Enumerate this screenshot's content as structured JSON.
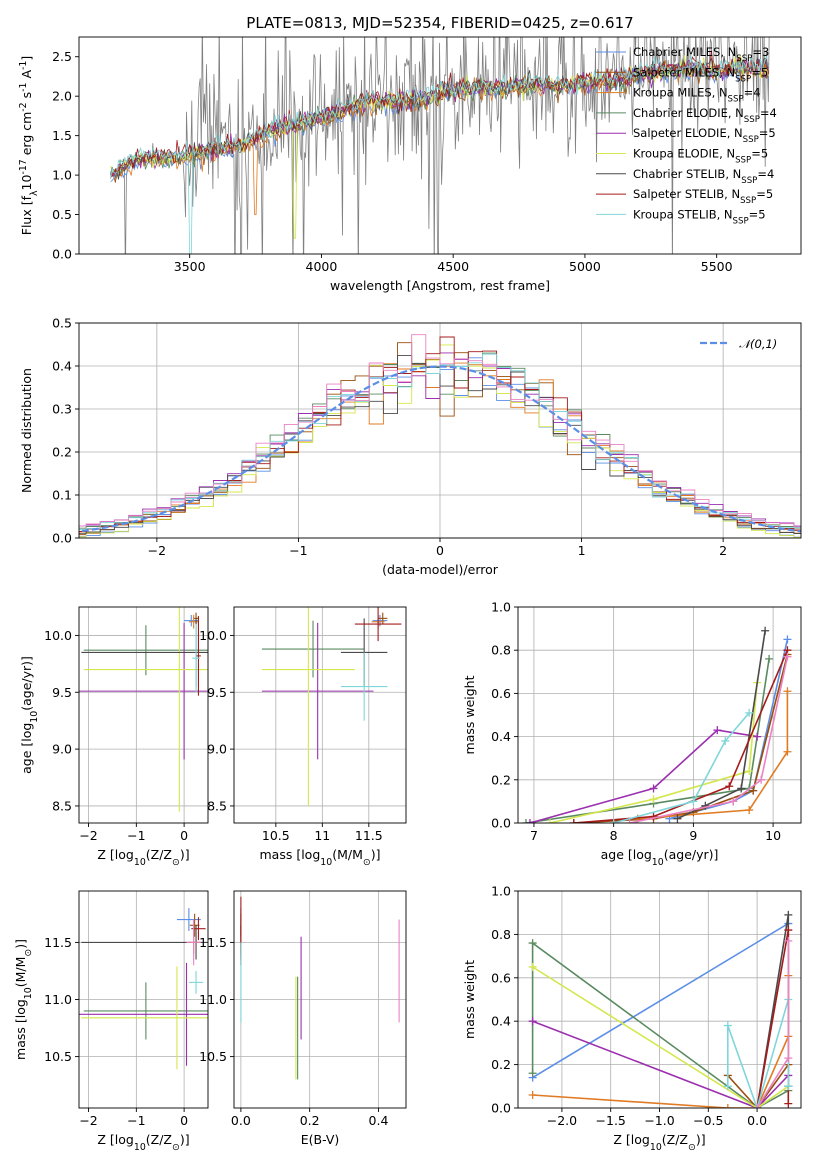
{
  "figure": {
    "title": "PLATE=0813, MJD=52354, FIBERID=0425, z=0.617"
  },
  "colors": {
    "Chabrier MILES": "#5b8ee6",
    "Salpeter MILES": "#9a4d0c",
    "Kroupa MILES": "#e07b24",
    "Chabrier ELODIE": "#5a8a60",
    "Salpeter ELODIE": "#9b2fae",
    "Kroupa ELODIE": "#d4e74e",
    "Chabrier STELIB": "#4a4a4a",
    "Salpeter STELIB": "#a51b1b",
    "Kroupa STELIB": "#7fd6da",
    "data": "#808080",
    "normal": "#5b8ee6",
    "pink": "#ea82c4"
  },
  "chart_data": [
    {
      "id": "spectrum",
      "type": "line",
      "title": "PLATE=0813, MJD=52354, FIBERID=0425, z=0.617",
      "xlabel": "wavelength [Angstrom, rest frame]",
      "ylabel": "Flux [f$_\\lambda$10$^{-17}$ erg cm$^{-2}$ s$^{-1}$ A$^{-1}$]",
      "xlim": [
        3080,
        5820
      ],
      "ylim": [
        0,
        2.75
      ],
      "xticks": [
        3500,
        4000,
        4500,
        5000,
        5500
      ],
      "yticks": [
        0.0,
        0.5,
        1.0,
        1.5,
        2.0,
        2.5
      ],
      "grid": false,
      "legend_loc": "upper right",
      "legend": [
        "Chabrier MILES, N$_{SSP}$=3",
        "Salpeter MILES, N$_{SSP}$=5",
        "Kroupa MILES, N$_{SSP}$=4",
        "Chabrier ELODIE, N$_{SSP}$=4",
        "Salpeter ELODIE, N$_{SSP}$=5",
        "Kroupa ELODIE, N$_{SSP}$=5",
        "Chabrier STELIB, N$_{SSP}$=4",
        "Salpeter STELIB, N$_{SSP}$=5",
        "Kroupa STELIB, N$_{SSP}$=5"
      ],
      "continuum": {
        "x": [
          3200,
          3300,
          3400,
          3500,
          3600,
          3700,
          3800,
          3900,
          4000,
          4100,
          4200,
          4300,
          4400,
          4500,
          4600,
          4700,
          4800,
          4900,
          5000,
          5100,
          5200,
          5300,
          5400,
          5500,
          5600,
          5700
        ],
        "y": [
          1.0,
          1.2,
          1.22,
          1.25,
          1.33,
          1.38,
          1.55,
          1.65,
          1.72,
          1.85,
          1.95,
          1.93,
          1.98,
          2.08,
          2.1,
          2.1,
          2.15,
          2.12,
          2.18,
          2.2,
          2.28,
          2.32,
          2.35,
          2.33,
          2.36,
          2.35
        ]
      }
    },
    {
      "id": "residuals",
      "type": "line",
      "xlabel": "(data-model)/error",
      "ylabel": "Normed distribution",
      "xlim": [
        -2.55,
        2.55
      ],
      "ylim": [
        0,
        0.5
      ],
      "xticks": [
        -2,
        -1,
        0,
        1,
        2
      ],
      "yticks": [
        0.0,
        0.1,
        0.2,
        0.3,
        0.4,
        0.5
      ],
      "grid": true,
      "legend_loc": "upper right",
      "legend": [
        "$\\mathcal{N}(0,1)$"
      ],
      "bin_width": 0.1
    },
    {
      "id": "age_vs_Z",
      "type": "scatter",
      "xlabel": "Z [log$_{10}$(Z/Z$_\\odot$)]",
      "ylabel": "age  [log$_{10}$(age/yr)]",
      "xlim": [
        -2.2,
        0.5
      ],
      "ylim": [
        8.35,
        10.25
      ],
      "xticks": [
        -2,
        -1,
        0
      ],
      "yticks": [
        8.5,
        9.0,
        9.5,
        10.0
      ],
      "grid": true,
      "points": [
        {
          "name": "Chabrier MILES",
          "x": 0.15,
          "y": 10.13,
          "xerr": 0.15,
          "yerr": 0.05
        },
        {
          "name": "Salpeter MILES",
          "x": 0.25,
          "y": 10.15,
          "xerr": 0.05,
          "yerr": 0.05
        },
        {
          "name": "Kroupa MILES",
          "x": 0.2,
          "y": 10.12,
          "xerr": 0.1,
          "yerr": 0.06
        },
        {
          "name": "Chabrier ELODIE",
          "x": -0.8,
          "y": 9.87,
          "xerr": 1.3,
          "yerr": 0.22
        },
        {
          "name": "Salpeter ELODIE",
          "x": 0.0,
          "y": 9.51,
          "xerr": 2.3,
          "yerr": 0.6
        },
        {
          "name": "Kroupa ELODIE",
          "x": -0.1,
          "y": 9.7,
          "xerr": 2.0,
          "yerr": 1.25
        },
        {
          "name": "Chabrier STELIB",
          "x": 0.25,
          "y": 9.85,
          "xerr": 2.4,
          "yerr": 0.3
        },
        {
          "name": "Salpeter STELIB",
          "x": 0.3,
          "y": 9.82,
          "xerr": 0.05,
          "yerr": 0.35
        },
        {
          "name": "Kroupa STELIB",
          "x": 0.25,
          "y": 9.8,
          "xerr": 0.08,
          "yerr": 0.3
        }
      ]
    },
    {
      "id": "age_vs_mass",
      "type": "scatter",
      "xlabel": "mass [log$_{10}$(M/M$_\\odot$)]",
      "xlim": [
        10.05,
        11.9
      ],
      "ylim": [
        8.35,
        10.25
      ],
      "xticks": [
        10.5,
        11.0,
        11.5
      ],
      "yticks": [
        8.5,
        9.0,
        9.5,
        10.0
      ],
      "grid": true,
      "points": [
        {
          "name": "Chabrier MILES",
          "x": 11.62,
          "y": 10.13,
          "xerr": 0.08,
          "yerr": 0.05
        },
        {
          "name": "Salpeter MILES",
          "x": 11.65,
          "y": 10.15,
          "xerr": 0.05,
          "yerr": 0.05
        },
        {
          "name": "Kroupa MILES",
          "x": 11.6,
          "y": 10.12,
          "xerr": 0.07,
          "yerr": 0.06
        },
        {
          "name": "Chabrier ELODIE",
          "x": 10.9,
          "y": 9.88,
          "xerr": 0.55,
          "yerr": 0.25
        },
        {
          "name": "Salpeter ELODIE",
          "x": 10.95,
          "y": 9.51,
          "xerr": 0.6,
          "yerr": 0.6
        },
        {
          "name": "Kroupa ELODIE",
          "x": 10.85,
          "y": 9.7,
          "xerr": 0.5,
          "yerr": 1.2
        },
        {
          "name": "Chabrier STELIB",
          "x": 11.45,
          "y": 9.85,
          "xerr": 0.25,
          "yerr": 0.3
        },
        {
          "name": "Salpeter STELIB",
          "x": 11.6,
          "y": 10.1,
          "xerr": 0.25,
          "yerr": 0.15
        },
        {
          "name": "Kroupa STELIB",
          "x": 11.45,
          "y": 9.55,
          "xerr": 0.25,
          "yerr": 0.3
        }
      ]
    },
    {
      "id": "weight_vs_age",
      "type": "line",
      "xlabel": "age  [log$_{10}$(age/yr)]",
      "ylabel": "mass weight",
      "xlim": [
        6.8,
        10.35
      ],
      "ylim": [
        0,
        1.0
      ],
      "xticks": [
        7,
        8,
        9,
        10
      ],
      "yticks": [
        0.0,
        0.2,
        0.4,
        0.6,
        0.8,
        1.0
      ],
      "grid": true,
      "series": [
        {
          "name": "Chabrier MILES",
          "x": [
            8.7,
            9.5,
            9.75,
            10.18
          ],
          "y": [
            0.02,
            0.1,
            0.15,
            0.85
          ]
        },
        {
          "name": "Salpeter MILES",
          "x": [
            7.5,
            8.5,
            9.0,
            9.75,
            10.18
          ],
          "y": [
            0.0,
            0.02,
            0.05,
            0.15,
            0.78
          ]
        },
        {
          "name": "Kroupa MILES",
          "x": [
            8.3,
            9.7,
            10.18,
            10.18
          ],
          "y": [
            0.02,
            0.06,
            0.33,
            0.61
          ]
        },
        {
          "name": "Chabrier ELODIE",
          "x": [
            6.9,
            8.5,
            9.7,
            9.95
          ],
          "y": [
            0.0,
            0.09,
            0.16,
            0.76
          ]
        },
        {
          "name": "Salpeter ELODIE",
          "x": [
            6.95,
            8.5,
            9.3,
            9.8
          ],
          "y": [
            0.0,
            0.16,
            0.43,
            0.4
          ]
        },
        {
          "name": "Kroupa ELODIE",
          "x": [
            7.2,
            8.5,
            9.7,
            9.8
          ],
          "y": [
            0.0,
            0.11,
            0.24,
            0.65
          ]
        },
        {
          "name": "Chabrier STELIB",
          "x": [
            8.8,
            9.15,
            9.6,
            9.9
          ],
          "y": [
            0.02,
            0.08,
            0.16,
            0.89
          ]
        },
        {
          "name": "Salpeter STELIB",
          "x": [
            7.5,
            8.5,
            9.45,
            10.18
          ],
          "y": [
            0.0,
            0.03,
            0.17,
            0.8
          ]
        },
        {
          "name": "Kroupa STELIB",
          "x": [
            8.0,
            9.0,
            9.4,
            9.7
          ],
          "y": [
            0.0,
            0.1,
            0.38,
            0.51
          ]
        },
        {
          "name": "pink",
          "x": [
            8.2,
            9.5,
            9.85,
            10.18
          ],
          "y": [
            0.0,
            0.1,
            0.2,
            0.77
          ]
        }
      ]
    },
    {
      "id": "mass_vs_Z",
      "type": "scatter",
      "xlabel": "Z [log$_{10}$(Z/Z$_\\odot$)]",
      "ylabel": "mass [log$_{10}$(M/M$_\\odot$)]",
      "xlim": [
        -2.2,
        0.5
      ],
      "ylim": [
        10.05,
        11.95
      ],
      "xticks": [
        -2,
        -1,
        0
      ],
      "yticks": [
        10.5,
        11.0,
        11.5
      ],
      "grid": true,
      "points": [
        {
          "name": "Chabrier MILES",
          "x": 0.1,
          "y": 11.7,
          "xerr": 0.25,
          "yerr": 0.1
        },
        {
          "name": "Salpeter MILES",
          "x": 0.22,
          "y": 11.65,
          "xerr": 0.1,
          "yerr": 0.1
        },
        {
          "name": "Kroupa MILES",
          "x": 0.2,
          "y": 11.5,
          "xerr": 0.12,
          "yerr": 0.1
        },
        {
          "name": "Chabrier ELODIE",
          "x": -0.8,
          "y": 10.9,
          "xerr": 1.3,
          "yerr": 0.25
        },
        {
          "name": "Salpeter ELODIE",
          "x": 0.05,
          "y": 10.87,
          "xerr": 2.3,
          "yerr": 0.45
        },
        {
          "name": "Kroupa ELODIE",
          "x": -0.15,
          "y": 10.84,
          "xerr": 2.0,
          "yerr": 0.45
        },
        {
          "name": "Chabrier STELIB",
          "x": 0.25,
          "y": 11.5,
          "xerr": 2.4,
          "yerr": 0.15
        },
        {
          "name": "Salpeter STELIB",
          "x": 0.3,
          "y": 11.62,
          "xerr": 0.15,
          "yerr": 0.1
        },
        {
          "name": "Kroupa STELIB",
          "x": 0.25,
          "y": 11.15,
          "xerr": 0.15,
          "yerr": 0.1
        },
        {
          "name": "pink",
          "x": 0.2,
          "y": 11.5,
          "xerr": 0.15,
          "yerr": 0.2
        }
      ]
    },
    {
      "id": "mass_vs_ebv",
      "type": "scatter",
      "xlabel": "E(B-V)",
      "xlim": [
        -0.02,
        0.48
      ],
      "ylim": [
        10.05,
        11.95
      ],
      "xticks": [
        0.0,
        0.2,
        0.4
      ],
      "yticks": [
        10.5,
        11.0,
        11.5
      ],
      "grid": true,
      "points": [
        {
          "name": "Chabrier MILES",
          "x": 0.0,
          "y": 11.7,
          "yerr": 0.1
        },
        {
          "name": "Salpeter MILES",
          "x": 0.0,
          "y": 11.65,
          "yerr": 0.1
        },
        {
          "name": "Kroupa MILES",
          "x": 0.0,
          "y": 11.5,
          "yerr": 0.1
        },
        {
          "name": "Chabrier ELODIE",
          "x": 0.165,
          "y": 10.75,
          "yerr": 0.45
        },
        {
          "name": "Salpeter ELODIE",
          "x": 0.175,
          "y": 11.1,
          "yerr": 0.45
        },
        {
          "name": "Kroupa ELODIE",
          "x": 0.16,
          "y": 10.75,
          "yerr": 0.45
        },
        {
          "name": "Chabrier STELIB",
          "x": 0.0,
          "y": 11.5,
          "yerr": 0.15
        },
        {
          "name": "Salpeter STELIB",
          "x": 0.0,
          "y": 11.6,
          "yerr": 0.3
        },
        {
          "name": "Kroupa STELIB",
          "x": 0.0,
          "y": 11.15,
          "yerr": 0.35
        },
        {
          "name": "pink",
          "x": 0.46,
          "y": 11.25,
          "yerr": 0.45
        }
      ]
    },
    {
      "id": "weight_vs_Z",
      "type": "line",
      "xlabel": "Z [log$_{10}$(Z/Z$_\\odot$)]",
      "ylabel": "mass weight",
      "xlim": [
        -2.45,
        0.45
      ],
      "ylim": [
        0,
        1.0
      ],
      "xticks": [
        -2.0,
        -1.5,
        -1.0,
        -0.5,
        0.0
      ],
      "yticks": [
        0.0,
        0.2,
        0.4,
        0.6,
        0.8,
        1.0
      ],
      "grid": true,
      "series": [
        {
          "name": "Chabrier MILES",
          "x": [
            -2.3,
            0.32
          ],
          "y": [
            0.14,
            0.85
          ]
        },
        {
          "name": "Salpeter MILES",
          "x": [
            -0.3,
            0.0,
            0.32
          ],
          "y": [
            0.15,
            0.0,
            0.2
          ]
        },
        {
          "name": "Kroupa MILES",
          "x": [
            -2.3,
            -0.3,
            0.0,
            0.32,
            0.32
          ],
          "y": [
            0.06,
            0.0,
            0.0,
            0.33,
            0.61
          ]
        },
        {
          "name": "Chabrier ELODIE",
          "x": [
            -2.3,
            -2.3,
            0.0,
            0.32
          ],
          "y": [
            0.16,
            0.76,
            0.0,
            0.08
          ]
        },
        {
          "name": "Salpeter ELODIE",
          "x": [
            -2.3,
            0.0,
            0.32
          ],
          "y": [
            0.4,
            0.0,
            0.15
          ]
        },
        {
          "name": "Kroupa ELODIE",
          "x": [
            -2.3,
            0.0,
            0.32
          ],
          "y": [
            0.65,
            0.0,
            0.1
          ]
        },
        {
          "name": "Chabrier STELIB",
          "x": [
            0.0,
            0.32,
            0.32
          ],
          "y": [
            0.0,
            0.89,
            0.1
          ]
        },
        {
          "name": "Salpeter STELIB",
          "x": [
            0.0,
            0.32,
            0.32
          ],
          "y": [
            0.0,
            0.82,
            0.02
          ]
        },
        {
          "name": "Kroupa STELIB",
          "x": [
            -0.3,
            -0.3,
            0.0,
            0.32,
            0.32
          ],
          "y": [
            0.1,
            0.38,
            0.0,
            0.5,
            0.1
          ]
        },
        {
          "name": "pink",
          "x": [
            0.0,
            0.32,
            0.32
          ],
          "y": [
            0.0,
            0.23,
            0.77
          ]
        }
      ]
    }
  ]
}
